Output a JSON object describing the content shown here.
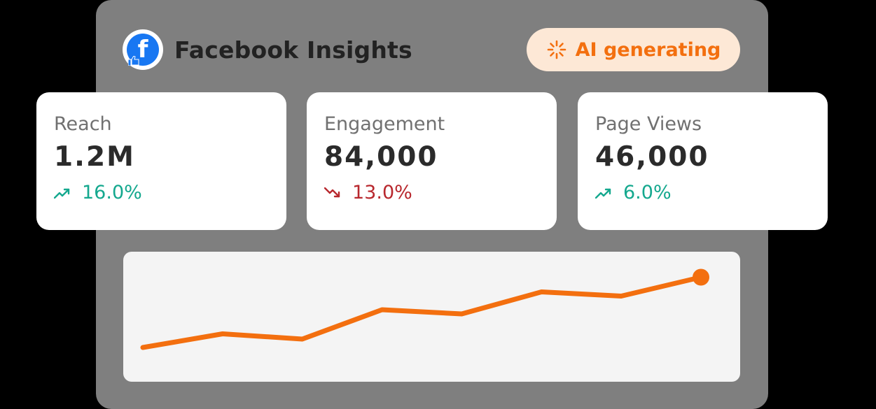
{
  "header": {
    "title": "Facebook Insights",
    "logo_icon": "facebook-icon",
    "status_label": "AI generating",
    "status_icon": "spinner-icon"
  },
  "colors": {
    "accent": "#f36f0f",
    "positive": "#14a88e",
    "negative": "#b8282e",
    "facebook_blue": "#1877f2"
  },
  "metrics": [
    {
      "label": "Reach",
      "value": "1.2M",
      "change": "16.0%",
      "trend": "up",
      "trend_icon": "trend-up-icon"
    },
    {
      "label": "Engagement",
      "value": "84,000",
      "change": "13.0%",
      "trend": "down",
      "trend_icon": "trend-down-icon"
    },
    {
      "label": "Page Views",
      "value": "46,000",
      "change": "6.0%",
      "trend": "up",
      "trend_icon": "trend-up-icon"
    }
  ],
  "chart_data": {
    "type": "line",
    "x": [
      1,
      2,
      3,
      4,
      5,
      6,
      7,
      8
    ],
    "series": [
      {
        "values": [
          22,
          35,
          30,
          58,
          54,
          75,
          71,
          89
        ]
      }
    ],
    "ylim": [
      0,
      100
    ],
    "title": "",
    "xlabel": "",
    "ylabel": "",
    "grid": false,
    "last_point_marker": true
  }
}
